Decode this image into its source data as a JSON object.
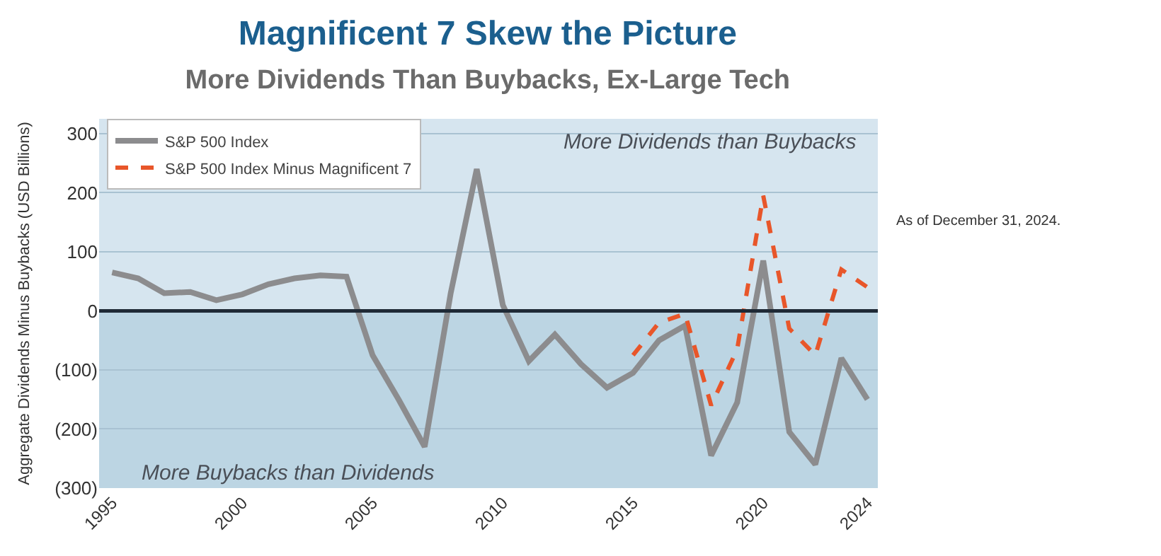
{
  "chart_data": {
    "type": "line",
    "title": "Magnificent 7 Skew the Picture",
    "subtitle": "More Dividends Than Buybacks, Ex-Large Tech",
    "ylabel": "Aggregate Dividends Minus Buybacks (USD Billions)",
    "x": [
      1995,
      1996,
      1997,
      1998,
      1999,
      2000,
      2001,
      2002,
      2003,
      2004,
      2005,
      2006,
      2007,
      2008,
      2009,
      2010,
      2011,
      2012,
      2013,
      2014,
      2015,
      2016,
      2017,
      2018,
      2019,
      2020,
      2021,
      2022,
      2023,
      2024
    ],
    "series": [
      {
        "name": "S&P 500 Index",
        "color": "#8c8c8e",
        "line_style": "solid",
        "values": [
          65,
          55,
          30,
          32,
          18,
          28,
          45,
          55,
          60,
          58,
          -75,
          -150,
          -230,
          30,
          240,
          10,
          -85,
          -40,
          -90,
          -130,
          -105,
          -50,
          -25,
          -245,
          -155,
          85,
          -205,
          -260,
          -80,
          -150
        ]
      },
      {
        "name": "S&P 500 Index Minus Magnificent 7",
        "color": "#e8562a",
        "line_style": "dashed",
        "x": [
          2015,
          2016,
          2017,
          2018,
          2019,
          2020,
          2021,
          2022,
          2023,
          2024
        ],
        "values": [
          -75,
          -20,
          -5,
          -160,
          -65,
          195,
          -30,
          -75,
          70,
          40
        ]
      }
    ],
    "xlim": [
      1994.5,
      2024.4
    ],
    "xticks": [
      1995,
      2000,
      2005,
      2010,
      2015,
      2020,
      2024
    ],
    "ylim": [
      -300,
      325
    ],
    "yticks": [
      {
        "value": -300,
        "label": "(300)"
      },
      {
        "value": -200,
        "label": "(200)"
      },
      {
        "value": -100,
        "label": "(100)"
      },
      0,
      100,
      200,
      300
    ],
    "ref_lines": [
      {
        "axis": "y",
        "value": 0,
        "color": "#1f2a36"
      }
    ],
    "bands": [
      {
        "axis": "y",
        "from": 0,
        "to": 325,
        "label": "More Dividends than Buybacks",
        "color": "#d6e5ef"
      },
      {
        "axis": "y",
        "from": -300,
        "to": 0,
        "label": "More Buybacks than Dividends",
        "color": "#bcd5e3"
      }
    ],
    "grid": "y",
    "legend": "top left",
    "marker": "none",
    "annotations": [
      "As of December 31, 2024."
    ]
  }
}
